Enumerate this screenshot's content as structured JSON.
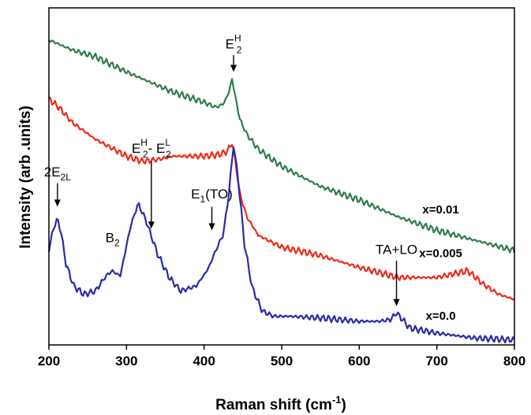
{
  "chart_data": {
    "type": "line",
    "xlabel": {
      "base": "Raman shift (cm",
      "sup": "-1",
      "end": ")"
    },
    "ylabel": "Intensity (arb .units)",
    "xlim": [
      200,
      800
    ],
    "ylim": [
      0,
      1
    ],
    "xticks": [
      "200",
      "300",
      "400",
      "500",
      "600",
      "700",
      "800"
    ],
    "grid": false,
    "series": [
      {
        "name": "x=0.01",
        "color": "#2e7d4f",
        "x": [
          200,
          230,
          260,
          300,
          320,
          340,
          360,
          380,
          400,
          415,
          425,
          432,
          436,
          440,
          446,
          455,
          470,
          500,
          550,
          600,
          650,
          700,
          750,
          800
        ],
        "y": [
          0.905,
          0.875,
          0.855,
          0.81,
          0.79,
          0.77,
          0.75,
          0.735,
          0.72,
          0.705,
          0.715,
          0.75,
          0.79,
          0.74,
          0.67,
          0.625,
          0.58,
          0.53,
          0.47,
          0.43,
          0.38,
          0.34,
          0.31,
          0.28
        ]
      },
      {
        "name": "x=0.005",
        "color": "#ee2a1b",
        "x": [
          200,
          215,
          230,
          260,
          300,
          320,
          340,
          360,
          380,
          400,
          420,
          430,
          436,
          440,
          446,
          455,
          470,
          500,
          550,
          600,
          650,
          700,
          720,
          740,
          760,
          780,
          800
        ],
        "y": [
          0.73,
          0.7,
          0.66,
          0.61,
          0.56,
          0.545,
          0.55,
          0.56,
          0.56,
          0.56,
          0.565,
          0.575,
          0.6,
          0.55,
          0.45,
          0.38,
          0.325,
          0.29,
          0.265,
          0.23,
          0.2,
          0.2,
          0.21,
          0.22,
          0.18,
          0.15,
          0.135
        ]
      },
      {
        "name": "x=0.0",
        "color": "#2a2aa6",
        "x": [
          200,
          205,
          211,
          216,
          222,
          232,
          245,
          260,
          272,
          281,
          292,
          305,
          315,
          325,
          340,
          355,
          370,
          390,
          405,
          415,
          425,
          432,
          438,
          444,
          452,
          462,
          475,
          490,
          510,
          550,
          600,
          625,
          640,
          648,
          656,
          665,
          700,
          750,
          800
        ],
        "y": [
          0.28,
          0.34,
          0.375,
          0.33,
          0.24,
          0.175,
          0.15,
          0.16,
          0.2,
          0.22,
          0.205,
          0.35,
          0.42,
          0.37,
          0.27,
          0.2,
          0.16,
          0.175,
          0.225,
          0.28,
          0.33,
          0.45,
          0.595,
          0.49,
          0.3,
          0.17,
          0.1,
          0.085,
          0.085,
          0.08,
          0.07,
          0.07,
          0.075,
          0.095,
          0.075,
          0.05,
          0.035,
          0.02,
          0.015
        ]
      }
    ],
    "series_labels": [
      {
        "text": "x=0.01",
        "x": 705,
        "y": 0.39
      },
      {
        "text": "x=0.005",
        "x": 705,
        "y": 0.26
      },
      {
        "text": "x=0.0",
        "x": 705,
        "y": 0.075
      }
    ],
    "annotations": [
      {
        "id": "e2h",
        "main": "E",
        "sub": "2",
        "sup": "H",
        "tail": "",
        "at_x": 438,
        "arrow_from": 0.86,
        "arrow_to": 0.81,
        "label_y": 0.88
      },
      {
        "id": "e2h-e2l",
        "main": "E",
        "sub": "2",
        "sup": "H",
        "tail": "- E",
        "sub2": "2",
        "sup2": "L",
        "at_x": 332,
        "arrow_from": 0.545,
        "arrow_to": 0.345,
        "label_y": 0.57
      },
      {
        "id": "2e2l",
        "main": "2E",
        "sub": "2L",
        "at_x": 211,
        "arrow_from": 0.48,
        "arrow_to": 0.41,
        "label_y": 0.5
      },
      {
        "id": "b2",
        "main": "B",
        "sub": "2",
        "at_x": 282,
        "label_y": 0.305
      },
      {
        "id": "e1to",
        "main": "E",
        "sub": "1",
        "tail": "(TO)",
        "at_x": 410,
        "arrow_from": 0.41,
        "arrow_to": 0.34,
        "label_y": 0.435
      },
      {
        "id": "talo",
        "main": "TA+LO",
        "at_x": 648,
        "arrow_from": 0.25,
        "arrow_to": 0.115,
        "label_y": 0.27
      }
    ]
  }
}
